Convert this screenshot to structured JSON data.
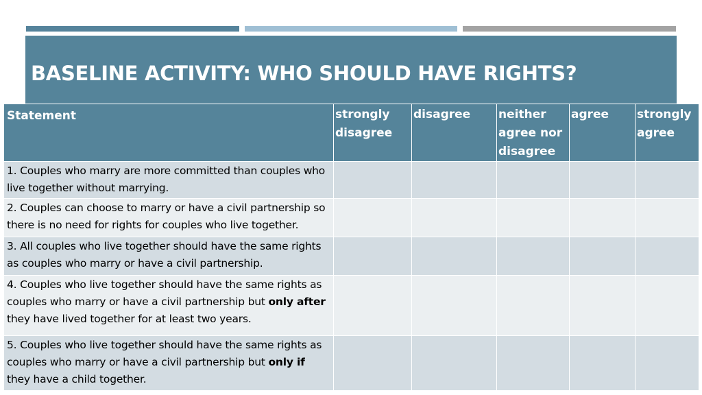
{
  "colors": {
    "accent_dark": "#55849a",
    "accent_light": "#9fbfd4",
    "accent_gray": "#a3a3a3",
    "row_odd": "#d3dce2",
    "row_even": "#ebeff1"
  },
  "slide": {
    "title": "BASELINE ACTIVITY: WHO SHOULD HAVE RIGHTS?"
  },
  "table": {
    "headers": {
      "statement": "Statement",
      "strongly_disagree": "strongly disagree",
      "disagree": "disagree",
      "neither": "neither agree nor disagree",
      "agree": "agree",
      "strongly_agree": "strongly agree"
    },
    "rows": [
      {
        "text": "1. Couples who marry are more committed than couples who live together without marrying."
      },
      {
        "text": "2. Couples can choose to marry or have a civil partnership so there is no need for rights for couples who live together."
      },
      {
        "text": "3.  All couples who live together should have the same rights as couples who marry or have a civil partnership."
      },
      {
        "text_before": "4. Couples who live together should have the same rights as couples who marry or have a civil partnership but ",
        "emphasis": "only after",
        "text_after": " they have lived together for at least two years."
      },
      {
        "text_before": "5. Couples who live together should have the same rights as couples who marry or have a civil partnership but ",
        "emphasis": "only if",
        "text_after": " they have a child together."
      }
    ]
  }
}
